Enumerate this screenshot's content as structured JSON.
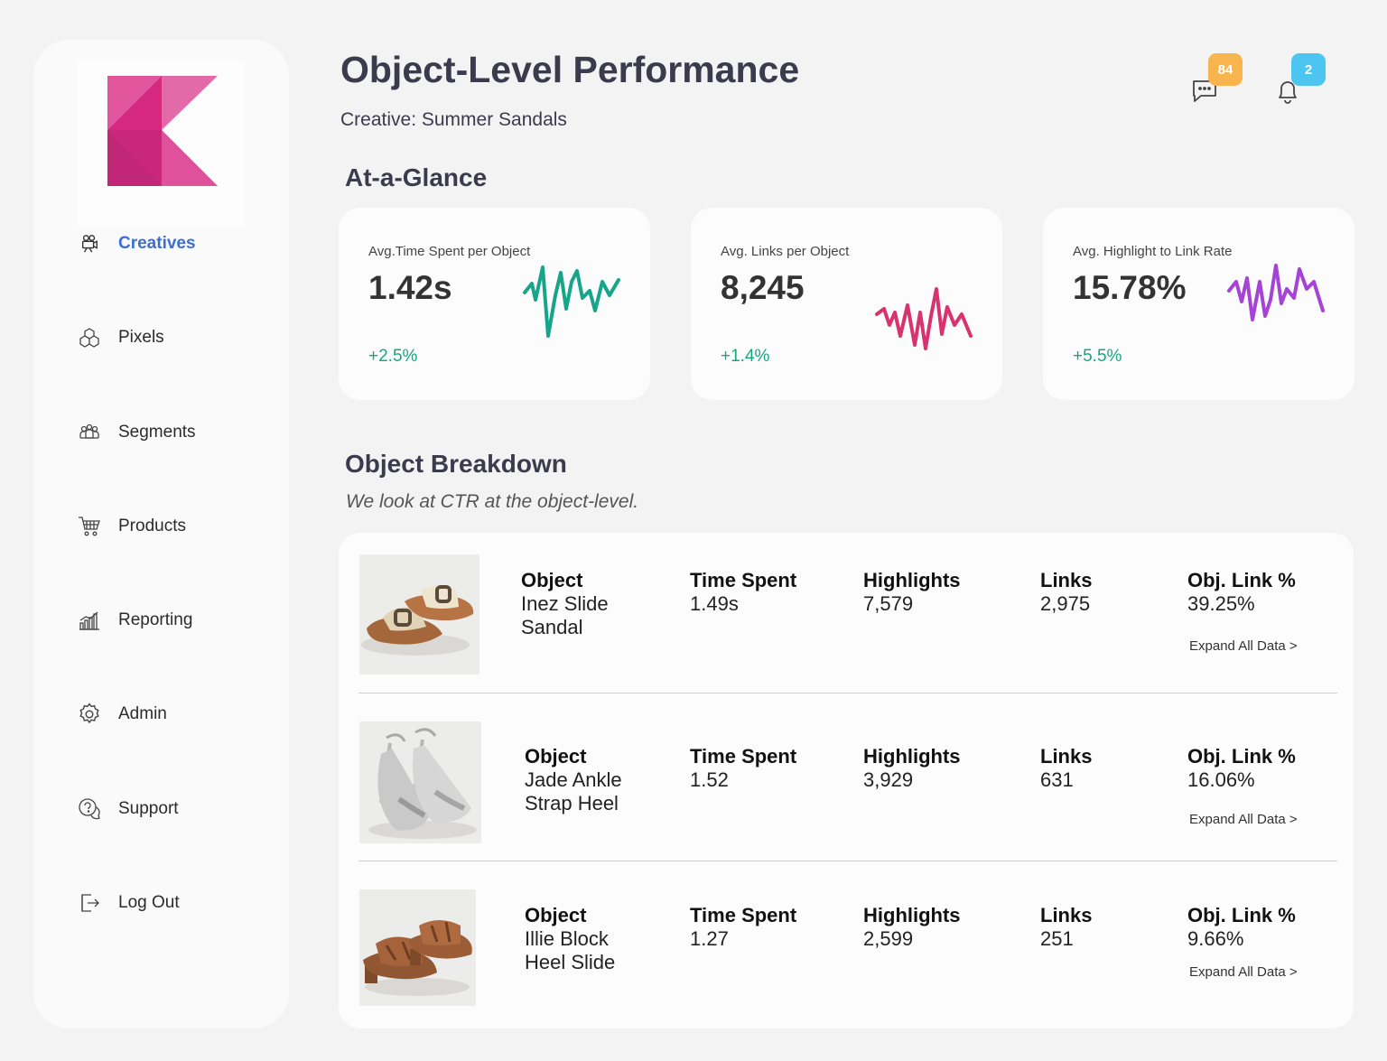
{
  "brand": {
    "logo_colors": [
      "#d6287e",
      "#e0559c",
      "#c9287a",
      "#e36aa8"
    ]
  },
  "sidebar": {
    "items": [
      {
        "label": "Creatives",
        "icon": "film-camera-icon",
        "active": true
      },
      {
        "label": "Pixels",
        "icon": "cubes-icon",
        "active": false
      },
      {
        "label": "Segments",
        "icon": "people-group-icon",
        "active": false
      },
      {
        "label": "Products",
        "icon": "cart-icon",
        "active": false
      },
      {
        "label": "Reporting",
        "icon": "bar-chart-icon",
        "active": false
      },
      {
        "label": "Admin",
        "icon": "gear-icon",
        "active": false
      },
      {
        "label": "Support",
        "icon": "help-chat-icon",
        "active": false
      },
      {
        "label": "Log Out",
        "icon": "logout-icon",
        "active": false
      }
    ]
  },
  "header": {
    "title": "Object-Level Performance",
    "subtitle": "Creative: Summer Sandals",
    "messages_badge": "84",
    "notifications_badge": "2",
    "messages_badge_color": "#f8b54d",
    "notifications_badge_color": "#4cc6f0"
  },
  "glance": {
    "title": "At-a-Glance",
    "cards": [
      {
        "label": "Avg.Time Spent per Object",
        "value": "1.42s",
        "delta": "+2.5%",
        "spark_color": "#17a58a"
      },
      {
        "label": "Avg. Links per Object",
        "value": "8,245",
        "delta": "+1.4%",
        "spark_color": "#d8336e"
      },
      {
        "label": "Avg. Highlight to Link Rate",
        "value": "15.78%",
        "delta": "+5.5%",
        "spark_color": "#a443d6"
      }
    ]
  },
  "breakdown": {
    "title": "Object Breakdown",
    "note": "We look at CTR at the object-level.",
    "headers": {
      "object": "Object",
      "time": "Time Spent",
      "highlights": "Highlights",
      "links": "Links",
      "rate": "Obj. Link %"
    },
    "expand_label": "Expand All Data >",
    "rows": [
      {
        "name_line1": "Inez Slide",
        "name_line2": "Sandal",
        "time": "1.49s",
        "highlights": "7,579",
        "links": "2,975",
        "rate": "39.25%"
      },
      {
        "name_line1": "Jade Ankle",
        "name_line2": "Strap Heel",
        "time": "1.52",
        "highlights": "3,929",
        "links": "631",
        "rate": "16.06%"
      },
      {
        "name_line1": "Illie Block",
        "name_line2": "Heel Slide",
        "time": "1.27",
        "highlights": "2,599",
        "links": "251",
        "rate": "9.66%"
      }
    ]
  }
}
